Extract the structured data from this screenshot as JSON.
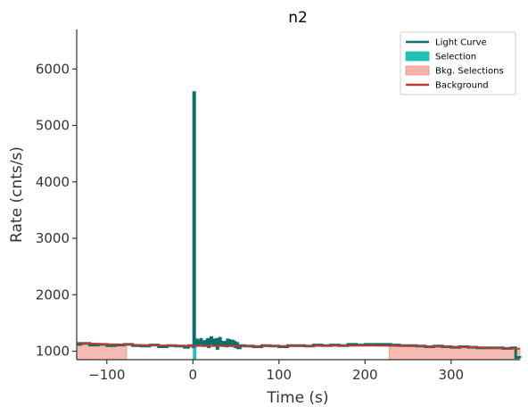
{
  "chart_data": {
    "type": "line",
    "title": "n2",
    "xlabel": "Time (s)",
    "ylabel": "Rate (cnts/s)",
    "xlim": [
      -135,
      380
    ],
    "ylim": [
      850,
      6700
    ],
    "xticks": [
      -100,
      0,
      100,
      200,
      300
    ],
    "xtick_labels": [
      "−100",
      "0",
      "100",
      "200",
      "300"
    ],
    "yticks": [
      1000,
      2000,
      3000,
      4000,
      5000,
      6000
    ],
    "ytick_labels": [
      "1000",
      "2000",
      "3000",
      "4000",
      "5000",
      "6000"
    ],
    "grid": false,
    "legend_position": "top-right",
    "legend": [
      {
        "label": "Light Curve",
        "kind": "line",
        "color": "#0e6e68"
      },
      {
        "label": "Selection",
        "kind": "patch",
        "color": "#20c0b4"
      },
      {
        "label": "Bkg. Selections",
        "kind": "patch",
        "color": "#f4b2aa"
      },
      {
        "label": "Background",
        "kind": "line",
        "color": "#c0392b"
      }
    ],
    "series": [
      {
        "name": "Light Curve",
        "color": "#0e6e68",
        "x": [
          -135,
          -130,
          -120,
          -110,
          -100,
          -90,
          -80,
          -70,
          -60,
          -50,
          -40,
          -30,
          -20,
          -10,
          -5,
          0,
          1,
          2,
          3,
          4,
          5,
          6,
          7,
          8,
          9,
          10,
          11,
          12,
          13,
          14,
          15,
          16,
          17,
          18,
          19,
          20,
          21,
          22,
          23,
          24,
          25,
          26,
          27,
          28,
          29,
          30,
          31,
          32,
          33,
          34,
          35,
          36,
          37,
          38,
          39,
          40,
          41,
          42,
          43,
          44,
          45,
          46,
          47,
          48,
          49,
          50,
          52,
          55,
          60,
          70,
          80,
          90,
          100,
          110,
          120,
          130,
          140,
          150,
          160,
          170,
          180,
          190,
          200,
          210,
          220,
          230,
          240,
          250,
          260,
          270,
          280,
          290,
          300,
          310,
          320,
          330,
          340,
          350,
          360,
          370,
          375,
          380
        ],
        "y": [
          1120,
          1140,
          1110,
          1120,
          1100,
          1110,
          1120,
          1100,
          1090,
          1110,
          1080,
          1100,
          1090,
          1070,
          1100,
          1080,
          5580,
          1100,
          1160,
          1200,
          1150,
          1120,
          1180,
          1150,
          1210,
          1140,
          1130,
          1170,
          1100,
          1130,
          1180,
          1120,
          1210,
          1080,
          1150,
          1200,
          1240,
          1140,
          1160,
          1120,
          1200,
          1150,
          1210,
          1050,
          1170,
          1130,
          1230,
          1160,
          1110,
          1140,
          1120,
          1160,
          1100,
          1150,
          1090,
          1200,
          1140,
          1190,
          1110,
          1150,
          1100,
          1180,
          1120,
          1160,
          1080,
          1140,
          1060,
          1100,
          1090,
          1080,
          1100,
          1090,
          1080,
          1100,
          1100,
          1090,
          1110,
          1100,
          1110,
          1100,
          1120,
          1110,
          1120,
          1120,
          1120,
          1110,
          1100,
          1100,
          1090,
          1080,
          1090,
          1080,
          1070,
          1080,
          1070,
          1060,
          1060,
          1060,
          1050,
          1060,
          890,
          880
        ]
      },
      {
        "name": "Background",
        "color": "#c0392b",
        "x": [
          -135,
          -100,
          -50,
          0,
          50,
          100,
          150,
          200,
          250,
          300,
          350,
          380
        ],
        "y": [
          1145,
          1125,
          1105,
          1095,
          1090,
          1090,
          1095,
          1100,
          1095,
          1080,
          1060,
          1045
        ]
      }
    ],
    "selection": {
      "x_start": 0,
      "x_end": 4,
      "color": "#20c0b4"
    },
    "bkg_selections": [
      {
        "x_start": -135,
        "x_end": -77,
        "color": "#f4b2aa"
      },
      {
        "x_start": 228,
        "x_end": 380,
        "color": "#f4b2aa"
      }
    ]
  }
}
